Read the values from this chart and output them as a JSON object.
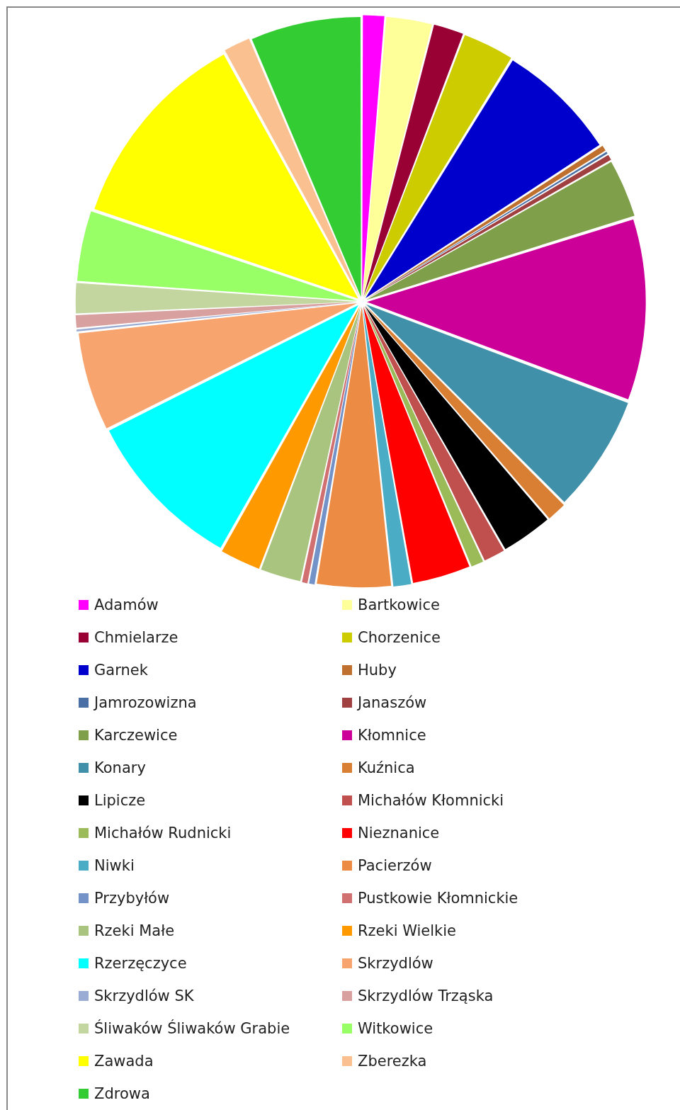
{
  "chart_data": {
    "type": "pie",
    "legend": "bottom",
    "categories": [
      "Adamów",
      "Bartkowice",
      "Chmielarze",
      "Chorzenice",
      "Garnek",
      "Huby",
      "Jamrozowizna",
      "Janaszów",
      "Karczewice",
      "Kłomnice",
      "Konary",
      "Kuźnica",
      "Lipicze",
      "Michałów Kłomnicki",
      "Michałów Rudnicki",
      "Nieznanice",
      "Niwki",
      "Pacierzów",
      "Przybyłów",
      "Pustkowie Kłomnickie",
      "Rzeki Małe",
      "Rzeki Wielkie",
      "Rzerzęczyce",
      "Skrzydlów",
      "Skrzydlów SK",
      "Skrzydlów Trząska",
      "Śliwaków Śliwaków Grabie",
      "Witkowice",
      "Zawada",
      "Zberezka",
      "Zdrowa"
    ],
    "values": [
      1.3,
      2.7,
      1.8,
      3.0,
      7.0,
      0.4,
      0.2,
      0.4,
      3.4,
      10.5,
      6.8,
      1.2,
      3.0,
      1.3,
      0.8,
      3.4,
      1.1,
      4.3,
      0.4,
      0.4,
      2.4,
      2.4,
      9.4,
      5.7,
      0.2,
      0.8,
      1.8,
      4.1,
      11.8,
      1.6,
      6.4
    ],
    "colors": [
      "#ff00ff",
      "#ffff99",
      "#990033",
      "#cccc00",
      "#0000cc",
      "#c0702e",
      "#4a6fa5",
      "#a04040",
      "#7f9f4a",
      "#cc0099",
      "#4190aa",
      "#d87f33",
      "#000000",
      "#c0504d",
      "#9bbb59",
      "#ff0000",
      "#4bacc6",
      "#ec8c44",
      "#7292c8",
      "#d07070",
      "#a9c47f",
      "#ff9900",
      "#00ffff",
      "#f7a46e",
      "#9bacd4",
      "#d9a0a0",
      "#c4d6a0",
      "#99ff66",
      "#ffff00",
      "#fac090",
      "#33cc33"
    ]
  }
}
